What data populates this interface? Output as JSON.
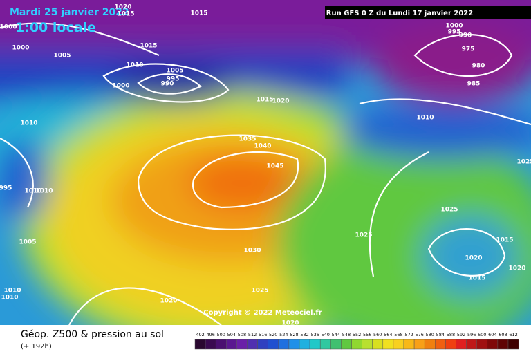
{
  "header": {
    "title": "Mardi 25 janvier 2022",
    "time": "1:00 locale",
    "run": "Run GFS 0 Z du Lundi 17 janvier 2022"
  },
  "map": {
    "isobar_labels": [
      "1020",
      "1015",
      "1015",
      "1000",
      "1000",
      "1005",
      "1015",
      "1010",
      "1005",
      "995",
      "990",
      "1000",
      "1015",
      "1020",
      "1010",
      "1035",
      "1040",
      "1045",
      "1000",
      "995",
      "990",
      "975",
      "980",
      "985",
      "1010",
      "1025",
      "1020",
      "1015",
      "1015",
      "1020",
      "1025",
      "1030",
      "1025",
      "1020",
      "1020",
      "1005",
      "1010",
      "1010",
      "1025",
      "995",
      "1010",
      "1010"
    ],
    "copyright": "Copyright © 2022 Meteociel.fr"
  },
  "footer": {
    "title": "Géop. Z500 & pression au sol",
    "lead": "(+ 192h)",
    "scale": [
      492,
      496,
      500,
      504,
      508,
      512,
      516,
      520,
      524,
      528,
      532,
      536,
      540,
      544,
      548,
      552,
      556,
      560,
      564,
      568,
      572,
      576,
      580,
      584,
      588,
      592,
      596,
      600,
      604,
      608,
      612
    ]
  }
}
